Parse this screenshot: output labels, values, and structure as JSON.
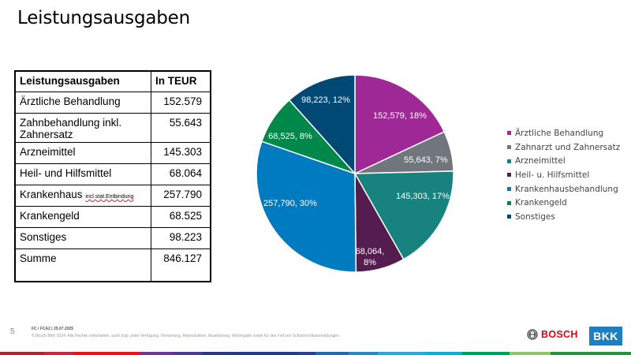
{
  "slide": {
    "title": "Leistungsausgaben",
    "page_number": "5",
    "footer_meta": "FC / FCA2 | 25.07.2025",
    "footer_copyright": "© Bosch BKK 2024. Alle Rechte vorbehalten, auch bzgl. jeder Verfügung, Verwertung, Reproduktion, Bearbeitung, Weitergabe sowie für den Fall von Schutzrechtsanmeldungen.",
    "logos": {
      "bosch": "BOSCH",
      "bkk": "BKK"
    }
  },
  "table": {
    "headers": [
      "Leistungsausgaben",
      "In TEUR"
    ],
    "rows": [
      {
        "label": "Ärztliche Behandlung",
        "note": "",
        "value": "152.579"
      },
      {
        "label": "Zahnbehandlung inkl. Zahnersatz",
        "note": "",
        "value": "55.643"
      },
      {
        "label": "Arzneimittel",
        "note": "",
        "value": "145.303"
      },
      {
        "label": "Heil- und Hilfsmittel",
        "note": "",
        "value": "68.064"
      },
      {
        "label": "Krankenhaus",
        "note": "incl.stat.Entbindung",
        "value": "257.790"
      },
      {
        "label": "Krankengeld",
        "note": "",
        "value": "68.525"
      },
      {
        "label": "Sonstiges",
        "note": "",
        "value": "98.223"
      },
      {
        "label": "Summe",
        "note": "",
        "value": "846.127"
      }
    ]
  },
  "chart_data": {
    "type": "pie",
    "title": "",
    "categories": [
      "Ärztliche Behandlung",
      "Zahnarzt und Zahnersatz",
      "Arzneimittel",
      "Heil- u. Hilfsmittel",
      "Krankenhausbehandlung",
      "Krankengeld",
      "Sonstiges"
    ],
    "values": [
      152579,
      55643,
      145303,
      68064,
      257790,
      68525,
      98223
    ],
    "percentages": [
      18,
      7,
      17,
      8,
      30,
      8,
      12
    ],
    "data_labels": [
      "152,579, 18%",
      "55,643, 7%",
      "145,303, 17%",
      "68,064, 8%",
      "257,790, 30%",
      "68,525, 8%",
      "98,223, 12%"
    ],
    "colors": [
      "#9e2896",
      "#71767c",
      "#18837e",
      "#551d4f",
      "#007bc0",
      "#00884a",
      "#004975"
    ],
    "start_angle_deg": 0,
    "direction": "clockwise",
    "legend_position": "right",
    "unit": "TEUR"
  },
  "supergraphic_colors": [
    "#a4262f",
    "#bf2a3c",
    "#e0141e",
    "#6b3a8c",
    "#4a3d8a",
    "#2a3b7c",
    "#1f3d86",
    "#2c3e8e",
    "#2967a8",
    "#3184bc",
    "#2fa7cf",
    "#15aad0",
    "#00a05a",
    "#93c36f",
    "#2e8f42"
  ]
}
